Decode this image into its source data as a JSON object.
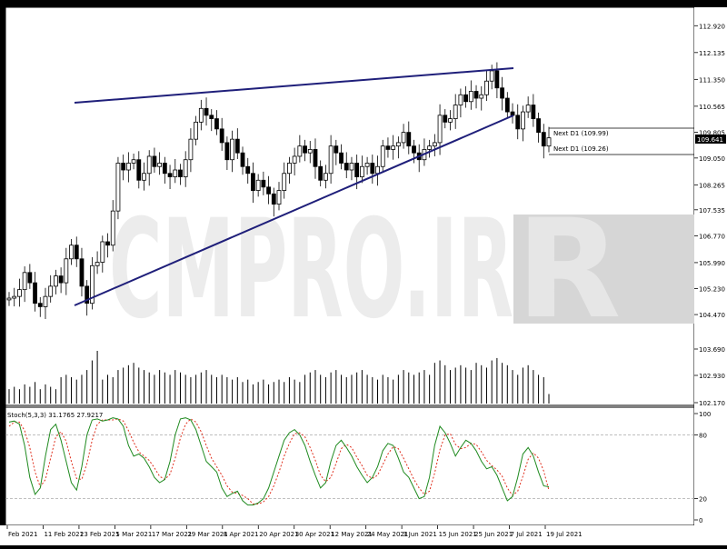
{
  "watermark": "CMPRO.IR",
  "price_panel": {
    "yaxis_ticks": [
      "112.920",
      "112.135",
      "111.350",
      "110.565",
      "109.805",
      "109.050",
      "108.265",
      "107.535",
      "106.770",
      "105.990",
      "105.230",
      "104.470"
    ],
    "ylim": [
      104.1,
      113.3
    ],
    "current_price": "109.641",
    "next_d1_labels": [
      "Next D1 (109.99)",
      "Next D1 (109.26)"
    ],
    "next_d1_values": [
      109.99,
      109.26
    ]
  },
  "volume_panel": {
    "yaxis_ticks": [
      "103.690",
      "102.930",
      "102.170"
    ]
  },
  "stoch_panel": {
    "title": "Stoch(5,3,3) 31.1765 27.9217",
    "yaxis_ticks": [
      "100",
      "80",
      "20",
      "0"
    ],
    "levels": [
      80,
      20
    ]
  },
  "xaxis_ticks": [
    "Feb 2021",
    "11 Feb 2021",
    "23 Feb 2021",
    "5 Mar 2021",
    "17 Mar 2021",
    "29 Mar 2021",
    "8 Apr 2021",
    "20 Apr 2021",
    "30 Apr 2021",
    "12 May 2021",
    "24 May 2021",
    "3 Jun 2021",
    "15 Jun 2021",
    "25 Jun 2021",
    "7 Jul 2021",
    "19 Jul 2021"
  ],
  "chart_data": {
    "type": "candlestick",
    "price_close": [
      104.95,
      105.0,
      105.2,
      105.7,
      105.4,
      104.8,
      104.7,
      105.0,
      105.3,
      105.6,
      105.4,
      106.1,
      106.5,
      106.1,
      105.3,
      104.8,
      105.9,
      106.0,
      106.6,
      106.5,
      107.5,
      108.9,
      108.7,
      108.9,
      109.0,
      108.4,
      108.6,
      109.1,
      108.8,
      108.9,
      108.6,
      108.5,
      108.7,
      108.5,
      109.0,
      109.6,
      110.1,
      110.5,
      110.3,
      110.2,
      109.9,
      109.5,
      109.0,
      109.6,
      109.2,
      108.8,
      108.6,
      108.1,
      108.4,
      108.2,
      108.0,
      107.7,
      108.1,
      108.6,
      108.9,
      109.1,
      109.4,
      109.2,
      109.3,
      108.8,
      108.4,
      108.6,
      109.4,
      109.2,
      108.9,
      108.7,
      108.9,
      108.5,
      108.8,
      108.9,
      108.6,
      108.8,
      109.4,
      109.3,
      109.4,
      109.5,
      109.8,
      109.4,
      109.2,
      109.0,
      109.3,
      109.4,
      109.5,
      110.3,
      110.1,
      110.2,
      110.6,
      110.9,
      110.7,
      111.0,
      110.8,
      110.9,
      111.3,
      111.6,
      111.1,
      110.8,
      110.4,
      110.3,
      109.9,
      110.4,
      110.6,
      110.2,
      109.8,
      109.4,
      109.64
    ],
    "volume": [
      30,
      35,
      30,
      40,
      35,
      45,
      30,
      40,
      35,
      30,
      55,
      60,
      55,
      50,
      60,
      70,
      90,
      110,
      50,
      60,
      55,
      70,
      75,
      80,
      85,
      75,
      70,
      65,
      60,
      70,
      65,
      60,
      70,
      65,
      60,
      55,
      60,
      65,
      70,
      60,
      55,
      60,
      55,
      50,
      55,
      45,
      50,
      40,
      45,
      50,
      40,
      45,
      50,
      45,
      55,
      50,
      45,
      60,
      65,
      70,
      60,
      55,
      65,
      70,
      60,
      55,
      60,
      65,
      70,
      60,
      55,
      50,
      60,
      55,
      50,
      60,
      70,
      65,
      60,
      65,
      70,
      60,
      85,
      90,
      80,
      70,
      75,
      80,
      75,
      70,
      85,
      80,
      75,
      90,
      95,
      85,
      80,
      70,
      60,
      75,
      80,
      70,
      60,
      55,
      20
    ],
    "stoch_main": [
      92,
      93,
      90,
      70,
      40,
      24,
      30,
      60,
      85,
      90,
      75,
      55,
      35,
      28,
      50,
      80,
      94,
      95,
      93,
      94,
      96,
      95,
      88,
      70,
      60,
      62,
      58,
      50,
      40,
      35,
      38,
      55,
      80,
      95,
      96,
      94,
      85,
      70,
      55,
      50,
      45,
      30,
      22,
      25,
      27,
      18,
      14,
      14,
      16,
      20,
      30,
      45,
      60,
      75,
      82,
      85,
      80,
      70,
      55,
      42,
      30,
      35,
      55,
      70,
      75,
      68,
      60,
      50,
      42,
      35,
      40,
      50,
      65,
      72,
      70,
      58,
      45,
      40,
      30,
      20,
      22,
      40,
      70,
      88,
      82,
      72,
      60,
      68,
      75,
      72,
      65,
      55,
      48,
      50,
      42,
      30,
      18,
      22,
      40,
      62,
      68,
      60,
      45,
      32,
      31.2
    ],
    "stoch_signal": [
      88,
      92,
      92,
      84,
      68,
      45,
      31,
      38,
      58,
      78,
      83,
      74,
      55,
      39,
      38,
      53,
      75,
      90,
      94,
      94,
      94,
      95,
      93,
      84,
      73,
      64,
      60,
      56,
      49,
      41,
      38,
      43,
      58,
      77,
      90,
      95,
      92,
      83,
      70,
      58,
      50,
      42,
      32,
      26,
      25,
      23,
      20,
      15,
      15,
      17,
      22,
      32,
      45,
      60,
      72,
      81,
      82,
      78,
      68,
      56,
      42,
      36,
      40,
      53,
      67,
      71,
      68,
      59,
      51,
      42,
      39,
      42,
      52,
      62,
      69,
      67,
      58,
      48,
      38,
      30,
      24,
      27,
      44,
      66,
      80,
      81,
      71,
      67,
      68,
      72,
      71,
      64,
      56,
      51,
      47,
      41,
      30,
      23,
      27,
      41,
      57,
      63,
      58,
      46,
      27.9
    ]
  }
}
